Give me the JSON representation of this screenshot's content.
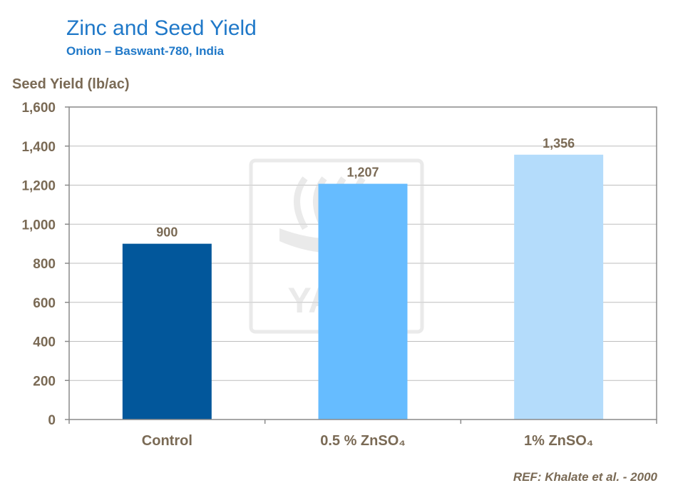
{
  "chart_data": {
    "type": "bar",
    "title": "Zinc and Seed Yield",
    "subtitle": "Onion – Baswant-780, India",
    "ylabel": "Seed Yield (lb/ac)",
    "xlabel": "",
    "categories": [
      "Control",
      "0.5 % ZnSO₄",
      "1% ZnSO₄"
    ],
    "values": [
      900,
      1207,
      1356
    ],
    "data_labels": [
      "900",
      "1,207",
      "1,356"
    ],
    "ylim": [
      0,
      1600
    ],
    "yticks": [
      0,
      200,
      400,
      600,
      800,
      1000,
      1200,
      1400,
      1600
    ],
    "ytick_labels": [
      "0",
      "200",
      "400",
      "600",
      "800",
      "1,000",
      "1,200",
      "1,400",
      "1,600"
    ],
    "bar_colors": [
      "#02579B",
      "#66BCFF",
      "#B4DCFB"
    ],
    "grid": true,
    "legend": "none",
    "reference": "REF: Khalate et al. -  2000",
    "watermark": "YARA"
  },
  "colors": {
    "title": "#1F78C8",
    "axis_text": "#7A6A55",
    "gridline": "#BEBEBE",
    "plot_border": "#8A8A8A",
    "watermark": "#D9D9D9"
  }
}
